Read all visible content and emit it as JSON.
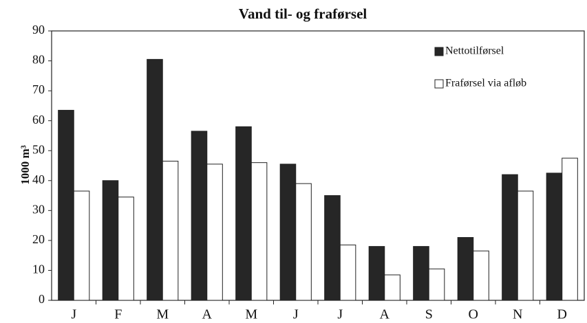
{
  "chart_data": {
    "type": "bar",
    "title": "Vand til- og fraførsel",
    "ylabel": "1000 m³",
    "categories": [
      "J",
      "F",
      "M",
      "A",
      "M",
      "J",
      "J",
      "A",
      "S",
      "O",
      "N",
      "D"
    ],
    "series": [
      {
        "name": "Nettotilførsel",
        "color": "#262626",
        "values": [
          63.5,
          40,
          80.5,
          56.5,
          58,
          45.5,
          35,
          18,
          18,
          21,
          42,
          42.5
        ]
      },
      {
        "name": "Fraførsel via afløb",
        "color": "#ffffff",
        "values": [
          36.5,
          34.5,
          46.5,
          45.5,
          46,
          39,
          18.5,
          8.5,
          10.5,
          16.5,
          36.5,
          47.5
        ]
      }
    ],
    "ylim": [
      0,
      90
    ],
    "yticks": [
      0,
      10,
      20,
      30,
      40,
      50,
      60,
      70,
      80,
      90
    ],
    "grid": false,
    "legend": "upper right"
  }
}
